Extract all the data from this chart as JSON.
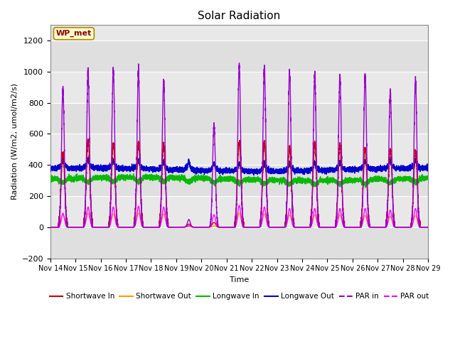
{
  "title": "Solar Radiation",
  "xlabel": "Time",
  "ylabel": "Radiation (W/m2, umol/m2/s)",
  "ylim": [
    -200,
    1300
  ],
  "yticks": [
    -200,
    0,
    200,
    400,
    600,
    800,
    1000,
    1200
  ],
  "xlim": [
    0,
    15
  ],
  "xtick_labels": [
    "Nov 14",
    "Nov 15",
    "Nov 16",
    "Nov 17",
    "Nov 18",
    "Nov 19",
    "Nov 20",
    "Nov 21",
    "Nov 22",
    "Nov 23",
    "Nov 24",
    "Nov 25",
    "Nov 26",
    "Nov 27",
    "Nov 28",
    "Nov 29"
  ],
  "background_color": "#e8e8e8",
  "grid_color": "white",
  "annotation_text": "WP_met",
  "annotation_bg": "#ffffcc",
  "annotation_border": "#aa8800",
  "series": {
    "shortwave_in": {
      "color": "#cc0000",
      "label": "Shortwave In",
      "lw": 1.0
    },
    "shortwave_out": {
      "color": "#ff9900",
      "label": "Shortwave Out",
      "lw": 1.0
    },
    "longwave_in": {
      "color": "#00bb00",
      "label": "Longwave In",
      "lw": 1.0
    },
    "longwave_out": {
      "color": "#0000cc",
      "label": "Longwave Out",
      "lw": 1.0
    },
    "par_in": {
      "color": "#9900cc",
      "label": "PAR in",
      "lw": 1.0
    },
    "par_out": {
      "color": "#ff00ff",
      "label": "PAR out",
      "lw": 1.0
    }
  },
  "n_days": 15,
  "pts_per_day": 480,
  "day_peaks_sw": [
    480,
    560,
    540,
    545,
    535,
    20,
    30,
    545,
    550,
    510,
    540,
    530,
    510,
    500,
    495
  ],
  "day_peaks_par": [
    880,
    1000,
    1010,
    1000,
    950,
    50,
    660,
    1040,
    1030,
    1000,
    980,
    975,
    975,
    875,
    950
  ],
  "day_peaks_swout": [
    80,
    90,
    85,
    90,
    85,
    5,
    8,
    90,
    85,
    80,
    80,
    80,
    75,
    70,
    75
  ],
  "day_peaks_parout": [
    90,
    130,
    130,
    135,
    130,
    10,
    80,
    140,
    130,
    120,
    120,
    120,
    120,
    110,
    120
  ],
  "lw_in_base": 310,
  "lw_out_base": 370,
  "figsize": [
    6.4,
    4.8
  ],
  "dpi": 100
}
